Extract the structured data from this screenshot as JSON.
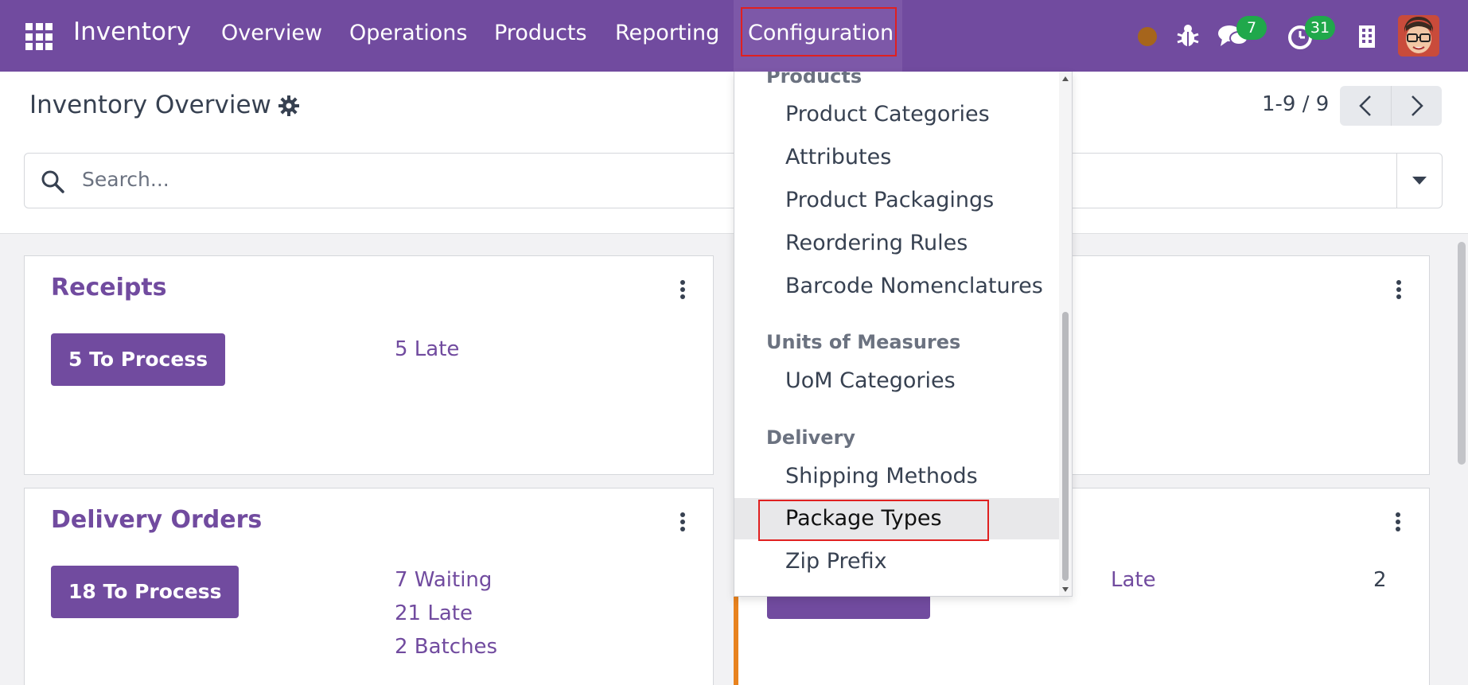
{
  "navbar": {
    "app_title": "Inventory",
    "menu": [
      "Overview",
      "Operations",
      "Products",
      "Reporting",
      "Configuration"
    ],
    "active_menu": "Configuration",
    "messages_badge": "7",
    "activities_badge": "31",
    "status_dot_color": "#a6651c"
  },
  "control_panel": {
    "title": "Inventory Overview",
    "pager": "1-9 / 9",
    "search_placeholder": "Search..."
  },
  "cards": {
    "receipts": {
      "title": "Receipts",
      "button": "5 To Process",
      "late": "5 Late"
    },
    "delivery_orders": {
      "title": "Delivery Orders",
      "button": "18 To Process",
      "waiting": "7 Waiting",
      "late": "21 Late",
      "batches": "2 Batches"
    },
    "right_bottom": {
      "late_label": "Late",
      "late_count": "2"
    }
  },
  "dropdown": {
    "sections": {
      "products": "Products",
      "uom": "Units of Measures",
      "delivery": "Delivery"
    },
    "products_items": [
      "Product Categories",
      "Attributes",
      "Product Packagings",
      "Reordering Rules",
      "Barcode Nomenclatures"
    ],
    "uom_items": [
      "UoM Categories"
    ],
    "delivery_items": [
      "Shipping Methods",
      "Package Types",
      "Zip Prefix"
    ],
    "highlighted_item": "Package Types"
  },
  "colors": {
    "brand": "#714b9f",
    "badge": "#20a84b",
    "highlight": "#e02020"
  }
}
